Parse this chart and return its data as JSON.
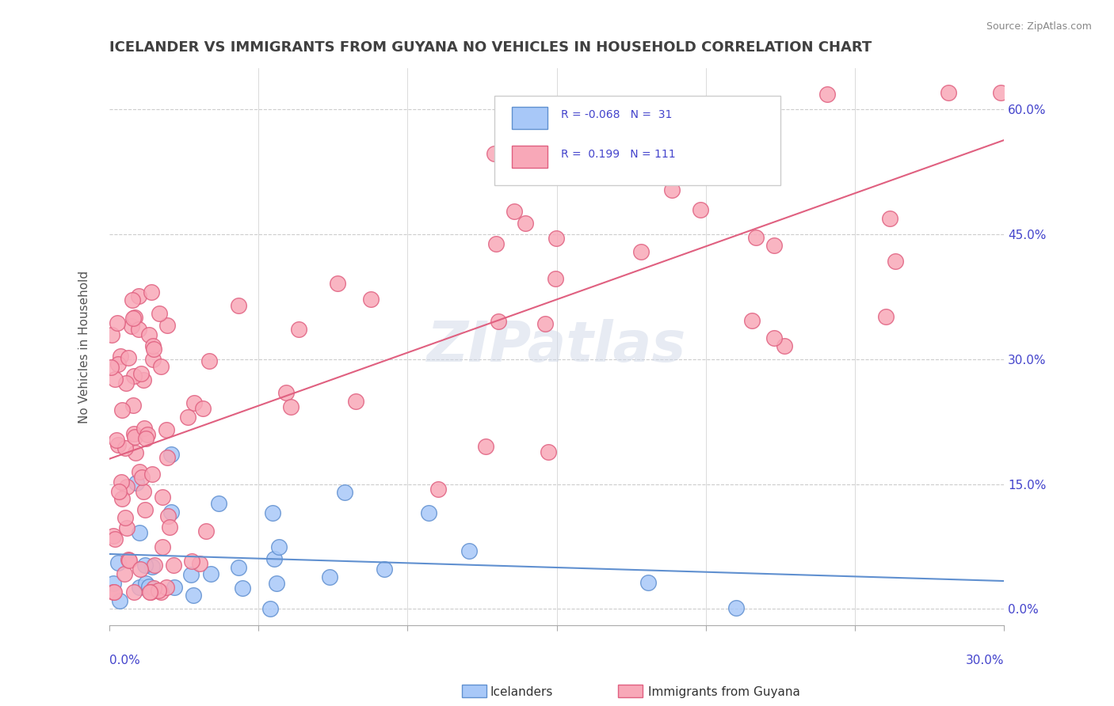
{
  "title": "ICELANDER VS IMMIGRANTS FROM GUYANA NO VEHICLES IN HOUSEHOLD CORRELATION CHART",
  "source": "Source: ZipAtlas.com",
  "ylabel": "No Vehicles in Household",
  "ytick_values": [
    0,
    15,
    30,
    45,
    60
  ],
  "xlim": [
    0,
    30
  ],
  "ylim": [
    -2,
    65
  ],
  "legend_r1": "R = -0.068",
  "legend_n1": "N =  31",
  "legend_r2": "R =  0.199",
  "legend_n2": "N = 111",
  "color_icelander": "#a8c8f8",
  "color_guyana": "#f8a8b8",
  "color_line_icelander": "#6090d0",
  "color_line_guyana": "#e06080",
  "color_axis": "#4444cc",
  "watermark": "ZIPatlas",
  "ice_seed": 42,
  "guy_seed": 123
}
